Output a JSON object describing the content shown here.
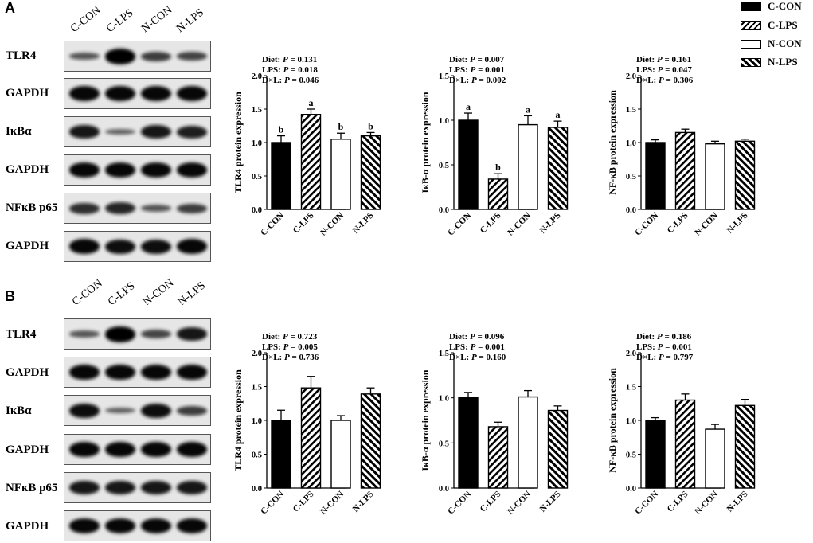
{
  "panels": [
    {
      "letter": "A",
      "lanes": [
        "C-CON",
        "C-LPS",
        "N-CON",
        "N-LPS"
      ],
      "blots": [
        {
          "label": "TLR4",
          "intensity": [
            0.45,
            1.0,
            0.6,
            0.55
          ]
        },
        {
          "label": "GAPDH",
          "intensity": [
            0.95,
            0.95,
            0.95,
            0.95
          ]
        },
        {
          "label": "IκBα",
          "intensity": [
            0.85,
            0.35,
            0.85,
            0.8
          ]
        },
        {
          "label": "GAPDH",
          "intensity": [
            0.95,
            0.95,
            0.95,
            0.95
          ]
        },
        {
          "label": "NFκB p65",
          "intensity": [
            0.7,
            0.75,
            0.45,
            0.6
          ]
        },
        {
          "label": "GAPDH",
          "intensity": [
            0.95,
            0.9,
            0.9,
            0.95
          ]
        }
      ]
    },
    {
      "letter": "B",
      "lanes": [
        "C-CON",
        "C-LPS",
        "N-CON",
        "N-LPS"
      ],
      "blots": [
        {
          "label": "TLR4",
          "intensity": [
            0.45,
            1.0,
            0.55,
            0.85
          ]
        },
        {
          "label": "GAPDH",
          "intensity": [
            0.95,
            0.95,
            0.95,
            0.95
          ]
        },
        {
          "label": "IκBα",
          "intensity": [
            0.9,
            0.35,
            0.9,
            0.6
          ]
        },
        {
          "label": "GAPDH",
          "intensity": [
            0.95,
            0.95,
            0.95,
            0.95
          ]
        },
        {
          "label": "NFκB p65",
          "intensity": [
            0.85,
            0.85,
            0.85,
            0.85
          ]
        },
        {
          "label": "GAPDH",
          "intensity": [
            0.95,
            0.95,
            0.95,
            0.95
          ]
        }
      ]
    }
  ],
  "legend": {
    "items": [
      {
        "label": "C-CON",
        "fill": "solid"
      },
      {
        "label": "C-LPS",
        "fill": "hatch"
      },
      {
        "label": "N-CON",
        "fill": "open"
      },
      {
        "label": "N-LPS",
        "fill": "hatch"
      }
    ]
  },
  "chart_data": [
    {
      "type": "bar",
      "panel": "A",
      "ylabel": "TLR4 protein expression",
      "ylim": [
        0,
        2.0
      ],
      "yticks": [
        "0.0",
        "0.5",
        "1.0",
        "1.5",
        "2.0"
      ],
      "categories": [
        "C-CON",
        "C-LPS",
        "N-CON",
        "N-LPS"
      ],
      "values": [
        1.0,
        1.42,
        1.05,
        1.1
      ],
      "errors": [
        0.1,
        0.08,
        0.09,
        0.05
      ],
      "letters": [
        "b",
        "a",
        "b",
        "b"
      ],
      "stats": [
        {
          "label": "Diet: ",
          "value": "0.131"
        },
        {
          "label": "LPS: ",
          "value": "0.018"
        },
        {
          "label": "D×L: ",
          "value": "0.046"
        }
      ]
    },
    {
      "type": "bar",
      "panel": "A",
      "ylabel": "IκB-α protein expression",
      "ylim": [
        0,
        1.5
      ],
      "yticks": [
        "0.0",
        "0.5",
        "1.0",
        "1.5"
      ],
      "categories": [
        "C-CON",
        "C-LPS",
        "N-CON",
        "N-LPS"
      ],
      "values": [
        1.0,
        0.34,
        0.95,
        0.92
      ],
      "errors": [
        0.08,
        0.06,
        0.1,
        0.07
      ],
      "letters": [
        "a",
        "b",
        "a",
        "a"
      ],
      "stats": [
        {
          "label": "Diet: ",
          "value": "0.007"
        },
        {
          "label": "LPS: ",
          "value": "0.001"
        },
        {
          "label": "D×L: ",
          "value": "0.002"
        }
      ]
    },
    {
      "type": "bar",
      "panel": "A",
      "ylabel": "NF-κB protein expression",
      "ylim": [
        0,
        2.0
      ],
      "yticks": [
        "0.0",
        "0.5",
        "1.0",
        "1.5",
        "2.0"
      ],
      "categories": [
        "C-CON",
        "C-LPS",
        "N-CON",
        "N-LPS"
      ],
      "values": [
        1.0,
        1.15,
        0.98,
        1.02
      ],
      "errors": [
        0.04,
        0.05,
        0.04,
        0.03
      ],
      "letters": [
        "",
        "",
        "",
        ""
      ],
      "stats": [
        {
          "label": "Diet: ",
          "value": "0.161"
        },
        {
          "label": "LPS: ",
          "value": "0.047"
        },
        {
          "label": "D×L: ",
          "value": "0.306"
        }
      ]
    },
    {
      "type": "bar",
      "panel": "B",
      "ylabel": "TLR4 protein expression",
      "ylim": [
        0,
        2.0
      ],
      "yticks": [
        "0.0",
        "0.5",
        "1.0",
        "1.5",
        "2.0"
      ],
      "categories": [
        "C-CON",
        "C-LPS",
        "N-CON",
        "N-LPS"
      ],
      "values": [
        1.0,
        1.48,
        1.0,
        1.39
      ],
      "errors": [
        0.15,
        0.17,
        0.07,
        0.09
      ],
      "letters": [
        "",
        "",
        "",
        ""
      ],
      "stats": [
        {
          "label": "Diet: ",
          "value": "0.723"
        },
        {
          "label": "LPS: ",
          "value": "0.005"
        },
        {
          "label": "D×L: ",
          "value": "0.736"
        }
      ]
    },
    {
      "type": "bar",
      "panel": "B",
      "ylabel": "IκB-α protein expression",
      "ylim": [
        0,
        1.5
      ],
      "yticks": [
        "0.0",
        "0.5",
        "1.0",
        "1.5"
      ],
      "categories": [
        "C-CON",
        "C-LPS",
        "N-CON",
        "N-LPS"
      ],
      "values": [
        1.0,
        0.68,
        1.01,
        0.86
      ],
      "errors": [
        0.06,
        0.05,
        0.07,
        0.05
      ],
      "letters": [
        "",
        "",
        "",
        ""
      ],
      "stats": [
        {
          "label": "Diet: ",
          "value": "0.096"
        },
        {
          "label": "LPS: ",
          "value": "0.001"
        },
        {
          "label": "D×L: ",
          "value": "0.160"
        }
      ]
    },
    {
      "type": "bar",
      "panel": "B",
      "ylabel": "NF-κB protein expression",
      "ylim": [
        0,
        2.0
      ],
      "yticks": [
        "0.0",
        "0.5",
        "1.0",
        "1.5",
        "2.0"
      ],
      "categories": [
        "C-CON",
        "C-LPS",
        "N-CON",
        "N-LPS"
      ],
      "values": [
        1.0,
        1.3,
        0.87,
        1.22
      ],
      "errors": [
        0.04,
        0.09,
        0.07,
        0.09
      ],
      "letters": [
        "",
        "",
        "",
        ""
      ],
      "stats": [
        {
          "label": "Diet: ",
          "value": "0.186"
        },
        {
          "label": "LPS: ",
          "value": "0.001"
        },
        {
          "label": "D×L: ",
          "value": "0.797"
        }
      ]
    }
  ]
}
